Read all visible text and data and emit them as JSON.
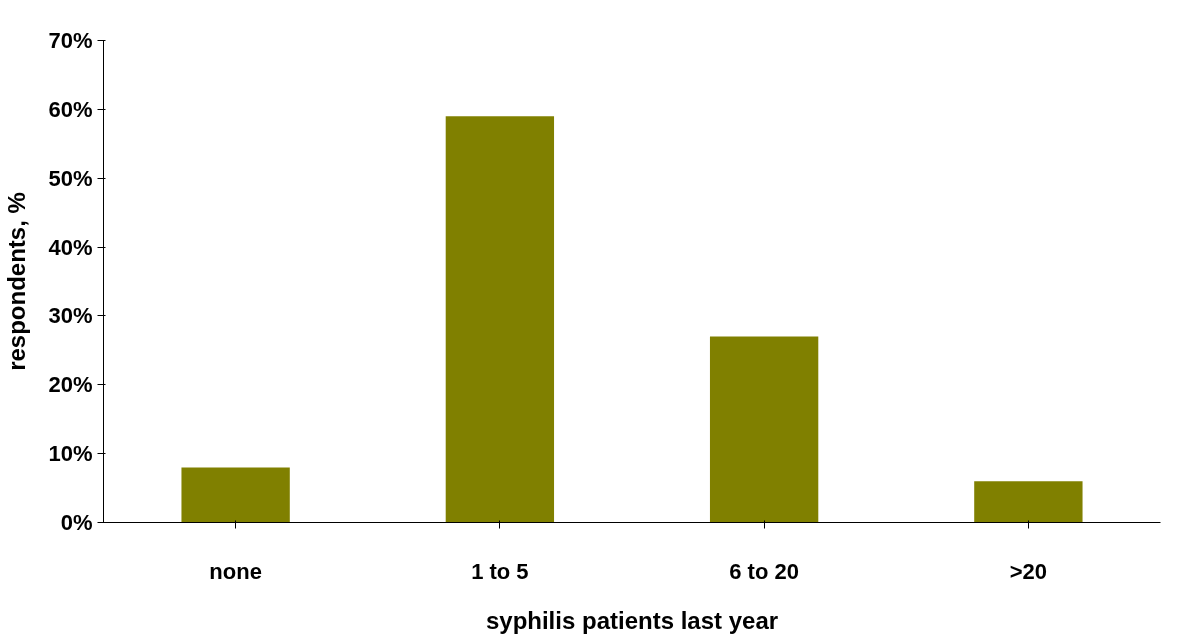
{
  "chart_data": {
    "type": "bar",
    "xlabel": "syphilis patients last year",
    "ylabel": "respondents, %",
    "categories": [
      "none",
      "1 to 5",
      "6 to 20",
      ">20"
    ],
    "values": [
      8,
      59,
      27,
      6
    ],
    "color": "#808000",
    "ylim": [
      0,
      70
    ],
    "yticks": [
      {
        "value": 0,
        "label": "0%"
      },
      {
        "value": 10,
        "label": "10%"
      },
      {
        "value": 20,
        "label": "20%"
      },
      {
        "value": 30,
        "label": "30%"
      },
      {
        "value": 40,
        "label": "40%"
      },
      {
        "value": 50,
        "label": "50%"
      },
      {
        "value": 60,
        "label": "60%"
      },
      {
        "value": 70,
        "label": "70%"
      }
    ],
    "grid": false
  }
}
